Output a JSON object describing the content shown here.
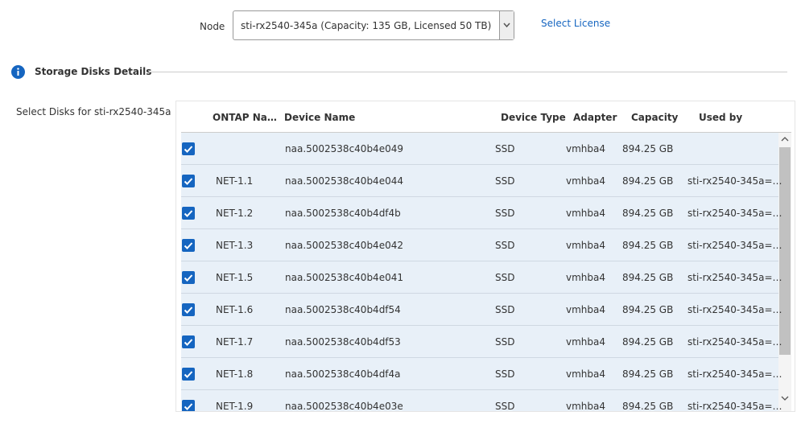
{
  "node": {
    "label": "Node",
    "value": "sti-rx2540-345a (Capacity: 135 GB, Licensed 50 TB)"
  },
  "select_license": "Select License",
  "section_title": "Storage Disks Details",
  "select_disks_label": "Select Disks for  sti-rx2540-345a",
  "table": {
    "columns": [
      "ONTAP Na…",
      "Device Name",
      "Device Type",
      "Adapter",
      "Capacity",
      "Used by"
    ],
    "rows": [
      [
        null,
        "naa.5002538c40b4e049",
        "SSD",
        "vmhba4",
        "894.25 GB",
        null
      ],
      [
        "NET-1.1",
        "naa.5002538c40b4e044",
        "SSD",
        "vmhba4",
        "894.25 GB",
        "sti-rx2540-345a=…"
      ],
      [
        "NET-1.2",
        "naa.5002538c40b4df4b",
        "SSD",
        "vmhba4",
        "894.25 GB",
        "sti-rx2540-345a=…"
      ],
      [
        "NET-1.3",
        "naa.5002538c40b4e042",
        "SSD",
        "vmhba4",
        "894.25 GB",
        "sti-rx2540-345a=…"
      ],
      [
        "NET-1.5",
        "naa.5002538c40b4e041",
        "SSD",
        "vmhba4",
        "894.25 GB",
        "sti-rx2540-345a=…"
      ],
      [
        "NET-1.6",
        "naa.5002538c40b4df54",
        "SSD",
        "vmhba4",
        "894.25 GB",
        "sti-rx2540-345a=…"
      ],
      [
        "NET-1.7",
        "naa.5002538c40b4df53",
        "SSD",
        "vmhba4",
        "894.25 GB",
        "sti-rx2540-345a=…"
      ],
      [
        "NET-1.8",
        "naa.5002538c40b4df4a",
        "SSD",
        "vmhba4",
        "894.25 GB",
        "sti-rx2540-345a=…"
      ],
      [
        "NET-1.9",
        "naa.5002538c40b4e03e",
        "SSD",
        "vmhba4",
        "894.25 GB",
        "sti-rx2540-345a=…"
      ]
    ]
  }
}
